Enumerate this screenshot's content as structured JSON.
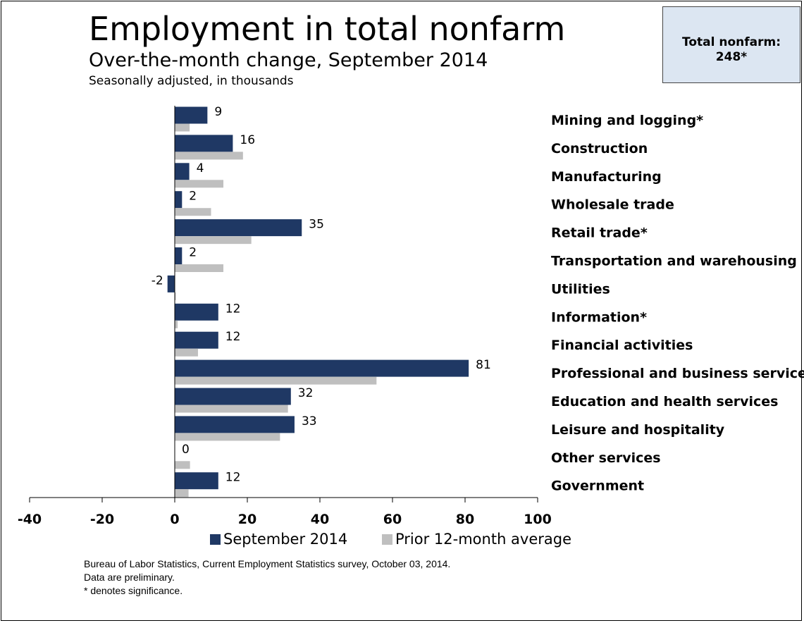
{
  "header": {
    "title": "Employment in total nonfarm",
    "subtitle": "Over-the-month change, September 2014",
    "units": "Seasonally adjusted, in thousands"
  },
  "total_box": {
    "label": "Total nonfarm:",
    "value": "248*"
  },
  "legend": {
    "items": [
      {
        "label": "September 2014",
        "color": "#1f3864"
      },
      {
        "label": "Prior 12-month average",
        "color": "#bfbfbf"
      }
    ]
  },
  "source": {
    "lines": [
      "Bureau of Labor Statistics, Current Employment Statistics survey, October 03, 2014.",
      "Data are preliminary.",
      "* denotes significance."
    ]
  },
  "chart_data": {
    "type": "bar",
    "orientation": "horizontal",
    "categories": [
      "Mining and logging*",
      "Construction",
      "Manufacturing",
      "Wholesale trade",
      "Retail trade*",
      "Transportation and warehousing",
      "Utilities",
      "Information*",
      "Financial activities",
      "Professional and business services*",
      "Education and health services",
      "Leisure and hospitality",
      "Other services",
      "Government"
    ],
    "series": [
      {
        "name": "September 2014",
        "color": "#1f3864",
        "values": [
          9,
          16,
          4,
          2,
          35,
          2,
          -2,
          12,
          12,
          81,
          32,
          33,
          0,
          12
        ],
        "labels": [
          "9",
          "16",
          "4",
          "2",
          "35",
          "2",
          "-2",
          "12",
          "12",
          "81",
          "32",
          "33",
          "0",
          "12"
        ]
      },
      {
        "name": "Prior 12-month average",
        "color": "#bfbfbf",
        "values": [
          4.1,
          18.8,
          13.4,
          10,
          21.1,
          13.4,
          0.3,
          0.8,
          6.4,
          55.6,
          31.2,
          29,
          4.2,
          3.8
        ]
      }
    ],
    "xlim": [
      -40,
      100
    ],
    "xticks": [
      -40,
      -20,
      0,
      20,
      40,
      60,
      80,
      100
    ],
    "grid": false,
    "legend_position": "bottom"
  }
}
